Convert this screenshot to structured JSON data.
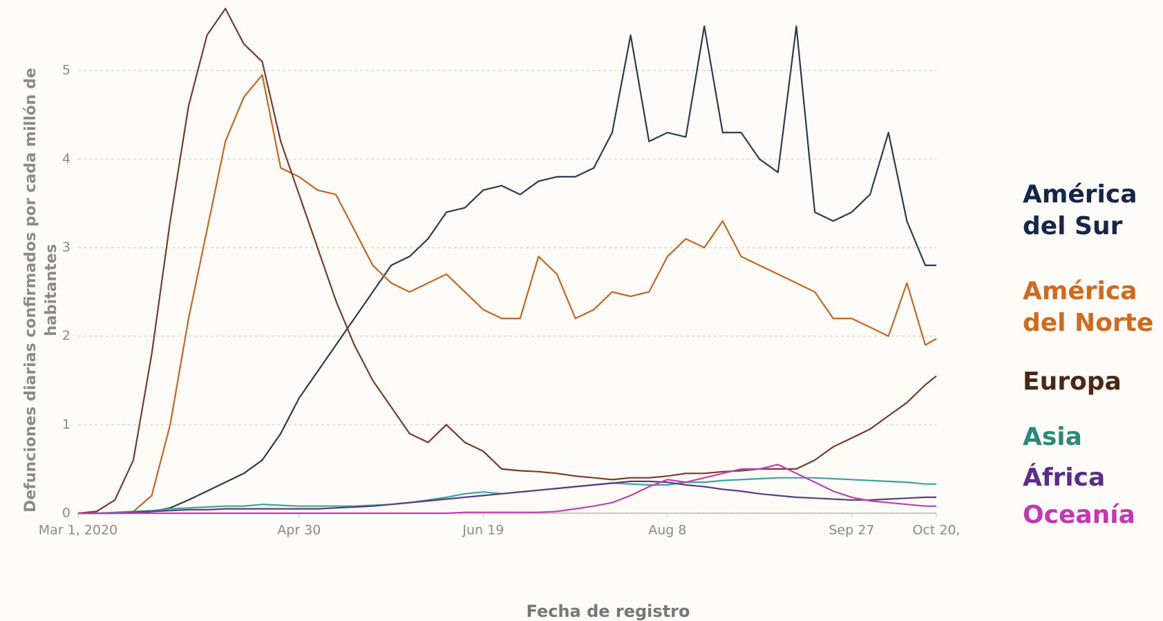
{
  "chart_data": {
    "type": "line",
    "x_label": "Fecha de registro",
    "y_label": "Defunciones diarias confirmados por cada millón de habitantes",
    "x": [
      "2020-03-01",
      "2020-03-06",
      "2020-03-11",
      "2020-03-16",
      "2020-03-21",
      "2020-03-26",
      "2020-03-31",
      "2020-04-05",
      "2020-04-10",
      "2020-04-15",
      "2020-04-20",
      "2020-04-25",
      "2020-04-30",
      "2020-05-05",
      "2020-05-10",
      "2020-05-15",
      "2020-05-20",
      "2020-05-25",
      "2020-05-30",
      "2020-06-04",
      "2020-06-09",
      "2020-06-14",
      "2020-06-19",
      "2020-06-24",
      "2020-06-29",
      "2020-07-04",
      "2020-07-09",
      "2020-07-14",
      "2020-07-19",
      "2020-07-24",
      "2020-07-29",
      "2020-08-03",
      "2020-08-08",
      "2020-08-13",
      "2020-08-18",
      "2020-08-23",
      "2020-08-28",
      "2020-09-02",
      "2020-09-07",
      "2020-09-12",
      "2020-09-17",
      "2020-09-22",
      "2020-09-27",
      "2020-10-02",
      "2020-10-07",
      "2020-10-12",
      "2020-10-17",
      "2020-10-20"
    ],
    "xlim": [
      "2020-03-01",
      "2020-10-20"
    ],
    "xticks": [
      {
        "value": "2020-03-01",
        "label": "Mar 1, 2020"
      },
      {
        "value": "2020-04-30",
        "label": "Apr 30"
      },
      {
        "value": "2020-06-19",
        "label": "Jun 19"
      },
      {
        "value": "2020-08-08",
        "label": "Aug 8"
      },
      {
        "value": "2020-09-27",
        "label": "Sep 27"
      },
      {
        "value": "2020-10-20",
        "label": "Oct 20,"
      }
    ],
    "ylim": [
      0,
      5.75
    ],
    "yticks": [
      0,
      1,
      2,
      3,
      4,
      5
    ],
    "grid": true,
    "series": [
      {
        "name": "América del Sur",
        "color": "#2e3a4c",
        "label_color": "#15264a",
        "values": [
          0,
          0,
          0,
          0,
          0.02,
          0.06,
          0.15,
          0.25,
          0.35,
          0.45,
          0.6,
          0.9,
          1.3,
          1.6,
          1.9,
          2.2,
          2.5,
          2.8,
          2.9,
          3.1,
          3.4,
          3.45,
          3.65,
          3.7,
          3.6,
          3.75,
          3.8,
          3.8,
          3.9,
          4.3,
          5.4,
          4.2,
          4.3,
          4.25,
          5.5,
          4.3,
          4.3,
          4.0,
          3.85,
          5.5,
          3.4,
          3.3,
          3.4,
          3.6,
          4.3,
          3.3,
          2.8,
          2.8
        ]
      },
      {
        "name": "América del Norte",
        "color": "#c8651f",
        "label_color": "#d2691e",
        "values": [
          0,
          0,
          0,
          0.02,
          0.2,
          1.0,
          2.2,
          3.2,
          4.2,
          4.7,
          4.95,
          3.9,
          3.8,
          3.65,
          3.6,
          3.2,
          2.8,
          2.6,
          2.5,
          2.6,
          2.7,
          2.5,
          2.3,
          2.2,
          2.2,
          2.9,
          2.7,
          2.2,
          2.3,
          2.5,
          2.45,
          2.5,
          2.9,
          3.1,
          3.0,
          3.3,
          2.9,
          2.8,
          2.7,
          2.6,
          2.5,
          2.2,
          2.2,
          2.1,
          2.0,
          2.6,
          1.9,
          1.97
        ]
      },
      {
        "name": "Europa",
        "color": "#7a3a2a",
        "label_color": "#4a2a14",
        "values": [
          0,
          0.02,
          0.15,
          0.6,
          1.8,
          3.3,
          4.6,
          5.4,
          5.7,
          5.3,
          5.1,
          4.2,
          3.6,
          3.0,
          2.4,
          1.9,
          1.5,
          1.2,
          0.9,
          0.8,
          1.0,
          0.8,
          0.7,
          0.5,
          0.48,
          0.47,
          0.45,
          0.42,
          0.4,
          0.38,
          0.4,
          0.4,
          0.42,
          0.45,
          0.45,
          0.47,
          0.48,
          0.5,
          0.5,
          0.5,
          0.6,
          0.75,
          0.85,
          0.95,
          1.1,
          1.25,
          1.45,
          1.55
        ]
      },
      {
        "name": "Asia",
        "color": "#3ba39a",
        "label_color": "#2a8a7a",
        "values": [
          0,
          0,
          0.01,
          0.02,
          0.03,
          0.05,
          0.06,
          0.07,
          0.08,
          0.08,
          0.1,
          0.09,
          0.08,
          0.08,
          0.08,
          0.08,
          0.09,
          0.1,
          0.12,
          0.15,
          0.18,
          0.22,
          0.24,
          0.22,
          0.24,
          0.26,
          0.28,
          0.3,
          0.32,
          0.34,
          0.33,
          0.32,
          0.32,
          0.35,
          0.35,
          0.37,
          0.38,
          0.39,
          0.4,
          0.4,
          0.4,
          0.39,
          0.38,
          0.37,
          0.36,
          0.35,
          0.33,
          0.33
        ]
      },
      {
        "name": "África",
        "color": "#5a3d80",
        "label_color": "#5a2d8a",
        "values": [
          0,
          0,
          0,
          0.01,
          0.02,
          0.03,
          0.04,
          0.04,
          0.05,
          0.05,
          0.05,
          0.05,
          0.05,
          0.05,
          0.06,
          0.07,
          0.08,
          0.1,
          0.12,
          0.14,
          0.16,
          0.18,
          0.2,
          0.22,
          0.24,
          0.26,
          0.28,
          0.3,
          0.32,
          0.34,
          0.36,
          0.36,
          0.35,
          0.32,
          0.3,
          0.27,
          0.25,
          0.22,
          0.2,
          0.18,
          0.17,
          0.16,
          0.15,
          0.15,
          0.16,
          0.17,
          0.18,
          0.18
        ]
      },
      {
        "name": "Oceanía",
        "color": "#c23fae",
        "label_color": "#c535b5",
        "values": [
          0,
          0,
          0,
          0,
          0,
          0,
          0,
          0,
          0,
          0,
          0,
          0,
          0,
          0,
          0,
          0,
          0,
          0,
          0,
          0,
          0,
          0.01,
          0.01,
          0.01,
          0.01,
          0.01,
          0.02,
          0.05,
          0.08,
          0.12,
          0.2,
          0.3,
          0.38,
          0.35,
          0.4,
          0.45,
          0.5,
          0.5,
          0.55,
          0.45,
          0.35,
          0.25,
          0.18,
          0.14,
          0.12,
          0.1,
          0.08,
          0.08
        ]
      }
    ]
  }
}
